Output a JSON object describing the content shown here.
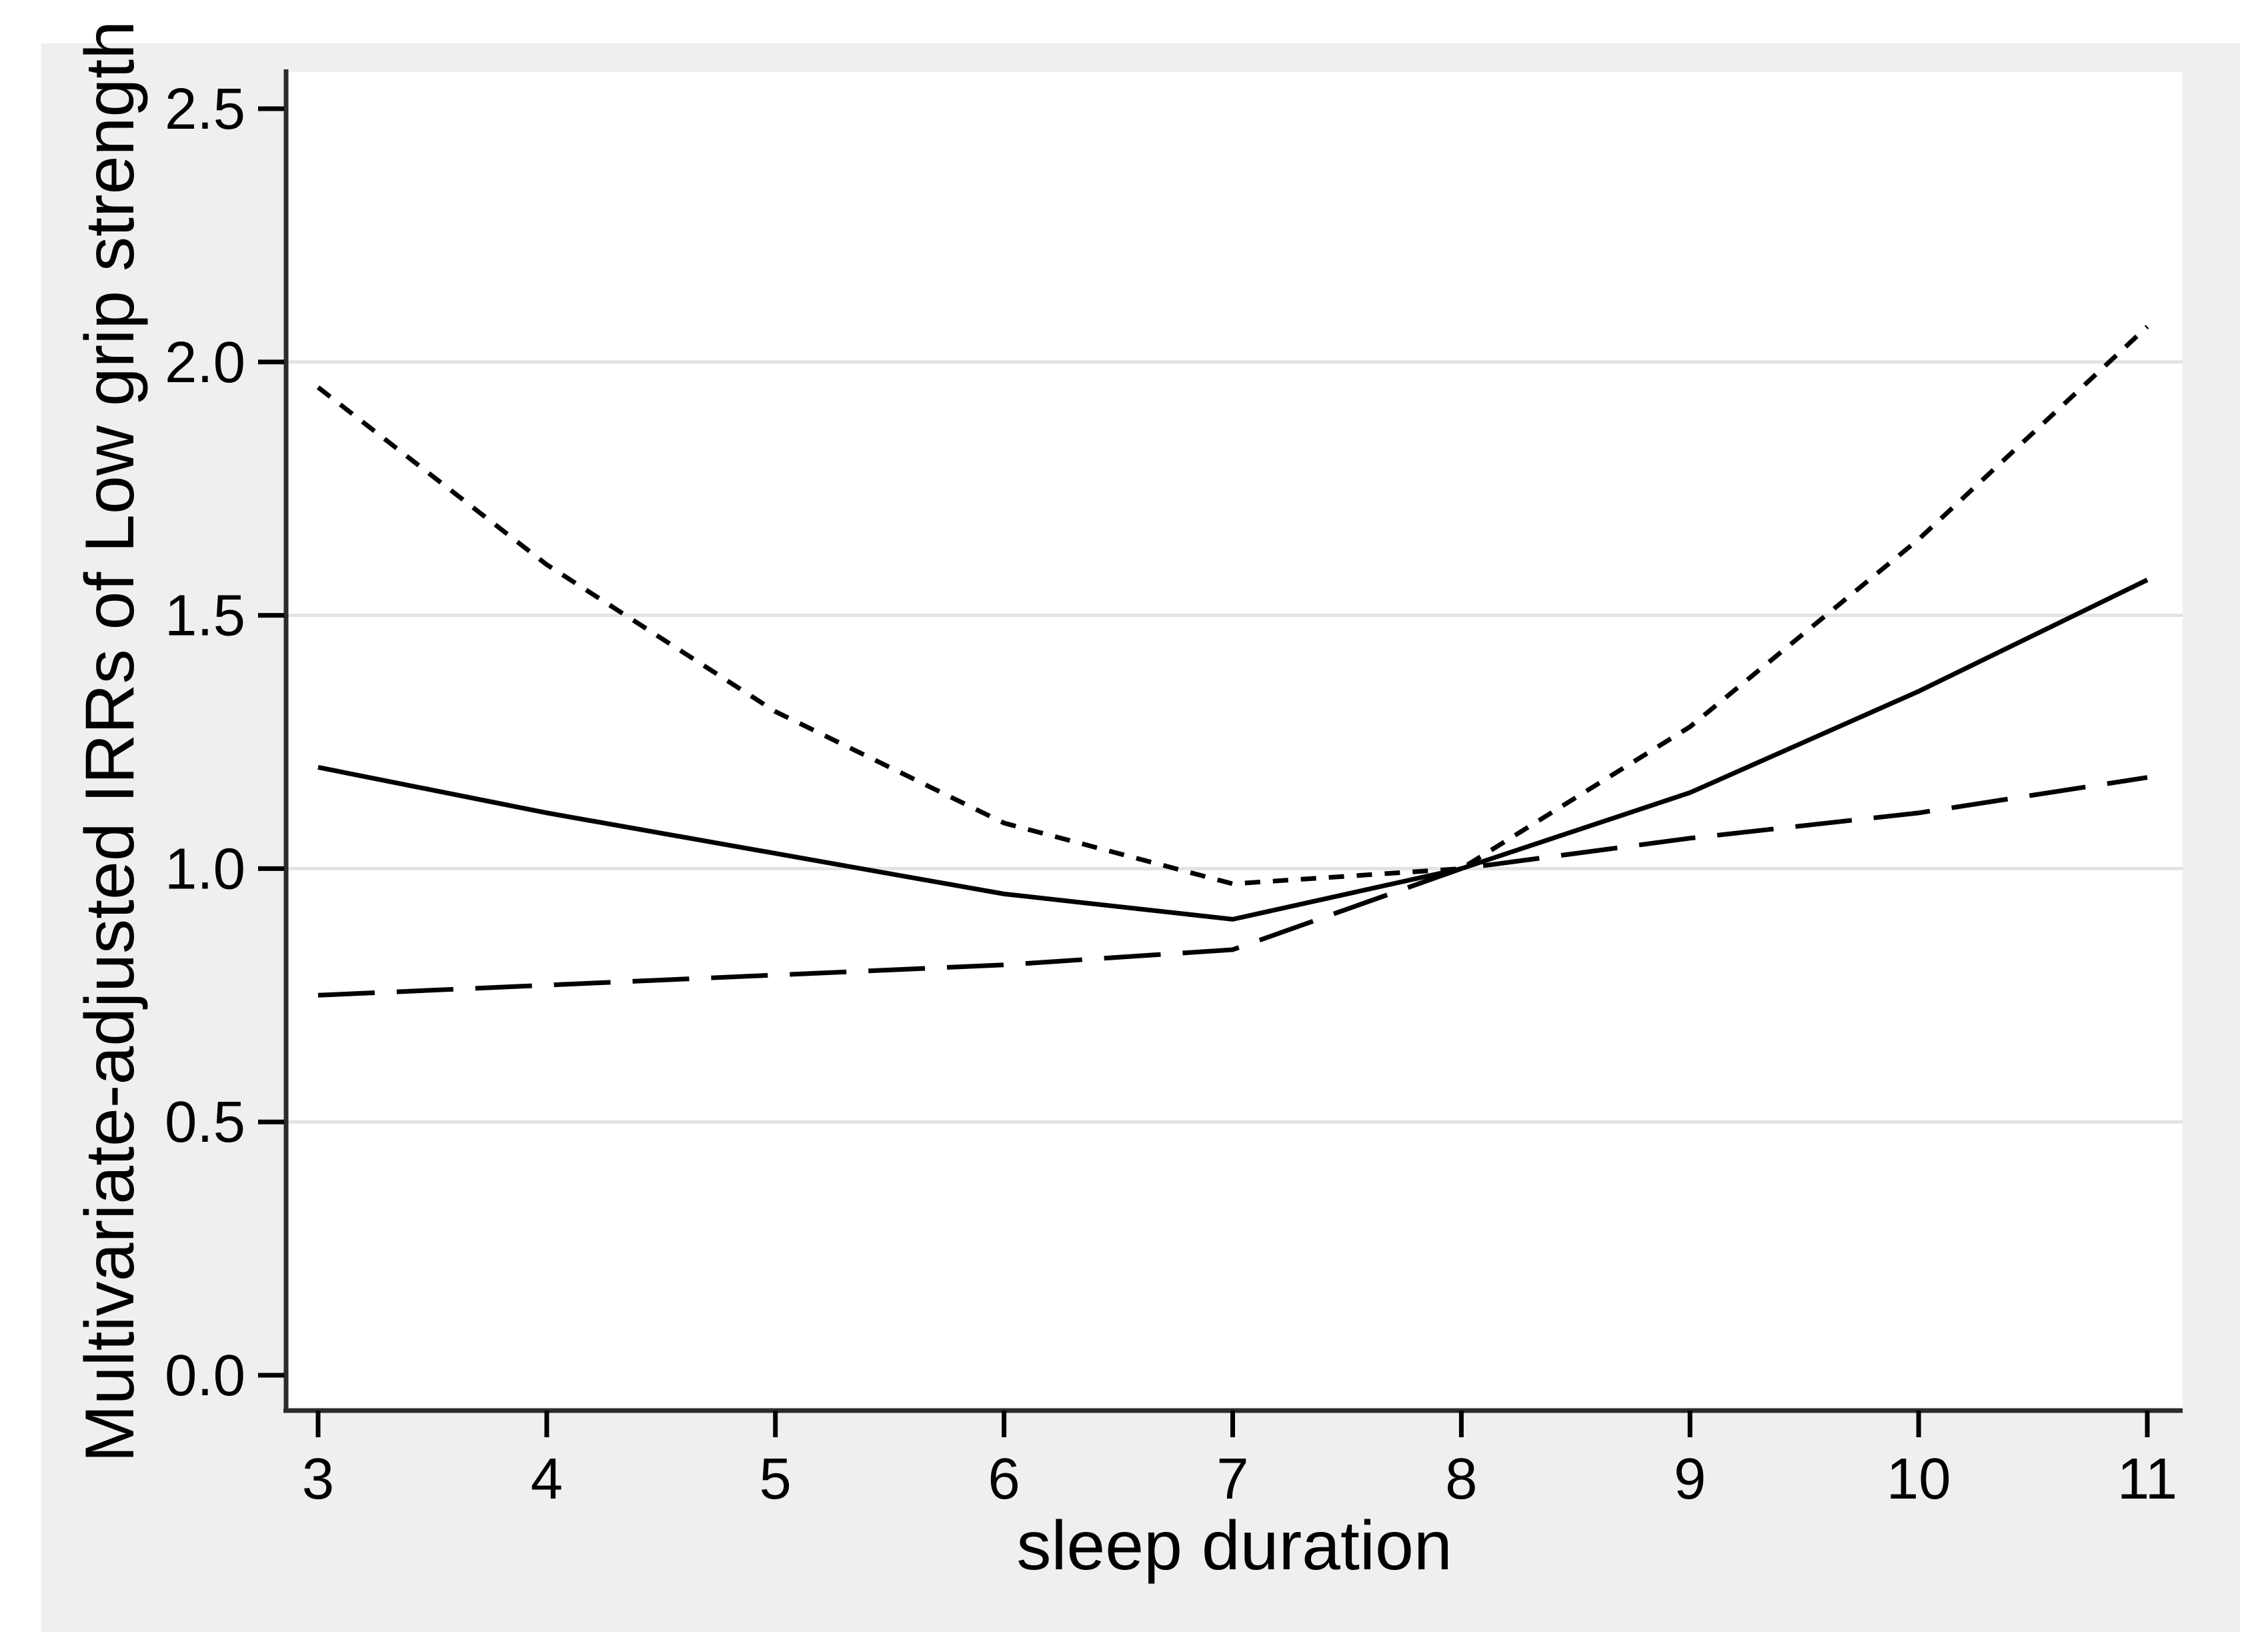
{
  "figure": {
    "outer_background": "#ffffff",
    "panel_color": "#efefef",
    "plot_background": "#ffffff",
    "gridline_color": "#e3e3e3",
    "axis_color": "#2b2b2b",
    "tick_color": "#000000",
    "series_color": "#000000"
  },
  "chart_data": {
    "type": "line",
    "title": "",
    "xlabel": "sleep duration",
    "ylabel": "Multivariate-adjusted IRRs of Low grip strength",
    "x": [
      3,
      4,
      5,
      6,
      7,
      8,
      9,
      10,
      11
    ],
    "xlim": [
      3,
      11
    ],
    "ylim": [
      0,
      2.57
    ],
    "xticks": [
      {
        "value": 3,
        "label": "3"
      },
      {
        "value": 4,
        "label": "4"
      },
      {
        "value": 5,
        "label": "5"
      },
      {
        "value": 6,
        "label": "6"
      },
      {
        "value": 7,
        "label": "7"
      },
      {
        "value": 8,
        "label": "8"
      },
      {
        "value": 9,
        "label": "9"
      },
      {
        "value": 10,
        "label": "10"
      },
      {
        "value": 11,
        "label": "11"
      }
    ],
    "yticks": [
      {
        "value": 0.0,
        "label": "0.0"
      },
      {
        "value": 0.5,
        "label": "0.5"
      },
      {
        "value": 1.0,
        "label": "1.0"
      },
      {
        "value": 1.5,
        "label": "1.5"
      },
      {
        "value": 2.0,
        "label": "2.0"
      },
      {
        "value": 2.5,
        "label": "2.5"
      }
    ],
    "gridlines_at": [
      0.5,
      1.0,
      1.5,
      2.0
    ],
    "grid": "horizontal-only",
    "legend_position": "none",
    "series": [
      {
        "name": "dotted-series",
        "style": "dotted",
        "values": [
          1.95,
          1.6,
          1.31,
          1.09,
          0.97,
          1.0,
          1.28,
          1.65,
          2.07
        ]
      },
      {
        "name": "solid-series",
        "style": "solid",
        "values": [
          1.2,
          1.11,
          1.03,
          0.95,
          0.9,
          1.0,
          1.15,
          1.35,
          1.57
        ]
      },
      {
        "name": "dashed-series",
        "style": "dashed",
        "values": [
          0.75,
          0.77,
          0.79,
          0.81,
          0.84,
          1.0,
          1.06,
          1.11,
          1.18
        ]
      }
    ],
    "reference_note": "all series equal 1.0 at sleep duration = 8"
  }
}
